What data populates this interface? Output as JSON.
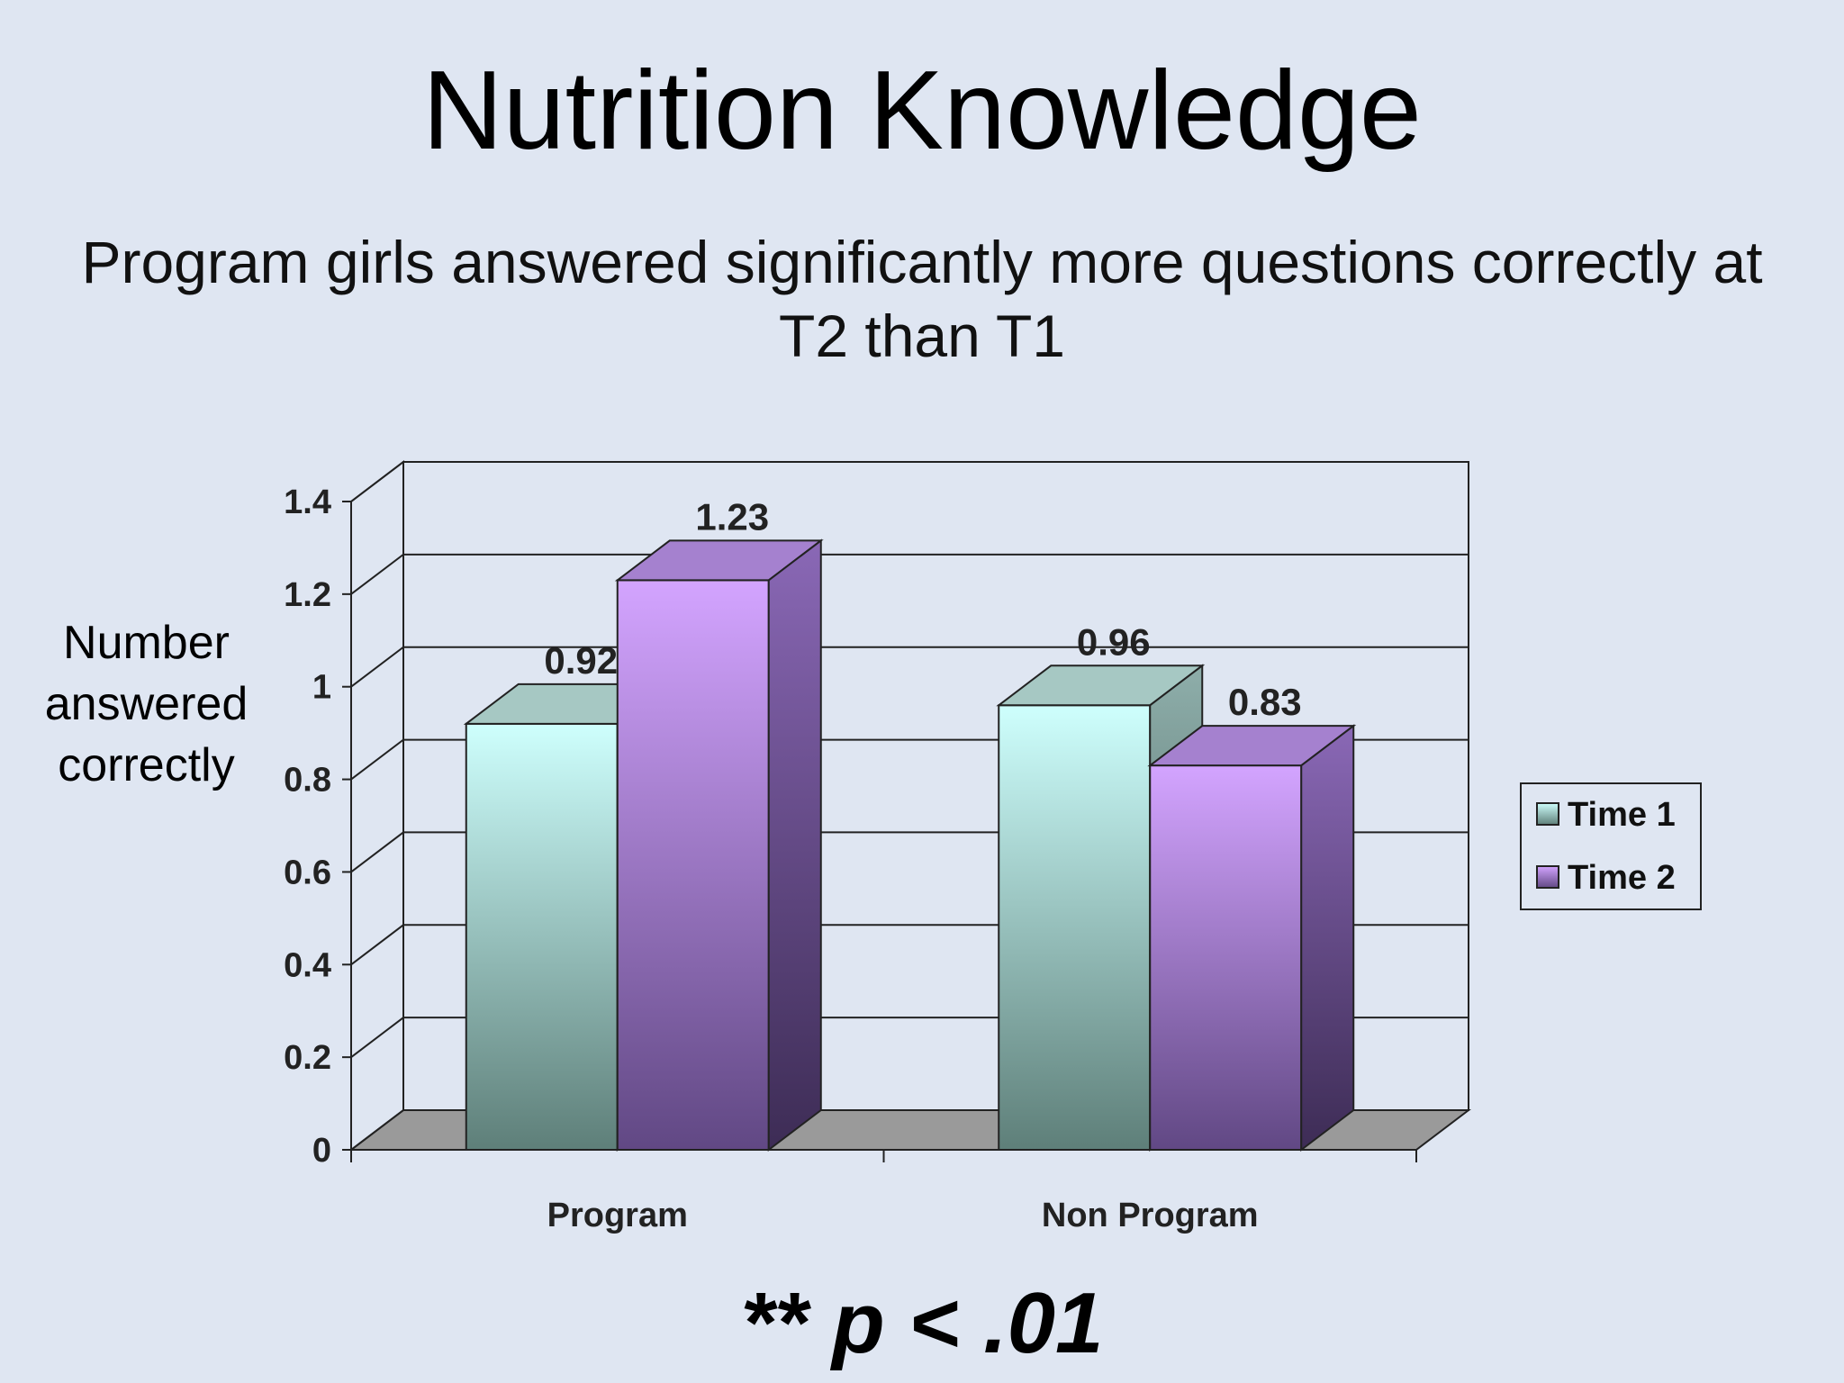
{
  "slide": {
    "title": "Nutrition Knowledge",
    "subtitle": "Program girls answered significantly more questions correctly at T2 than T1",
    "footnote": "** p < .01"
  },
  "chart_data": {
    "type": "bar",
    "style": "3d-clustered",
    "ylabel": "Number answered correctly",
    "xlabel": "",
    "categories": [
      "Program",
      "Non Program"
    ],
    "series": [
      {
        "name": "Time 1",
        "values": [
          0.92,
          0.96
        ],
        "labels": [
          "0.92",
          "0.96"
        ],
        "color": "#bff5f2"
      },
      {
        "name": "Time 2",
        "values": [
          1.23,
          0.83
        ],
        "labels": [
          "1.23",
          "0.83"
        ],
        "color": "#c69cf6"
      }
    ],
    "ylim": [
      0,
      1.4
    ],
    "yticks": [
      0,
      0.2,
      0.4,
      0.6,
      0.8,
      1,
      1.2,
      1.4
    ],
    "ytick_labels": [
      "0",
      "0.2",
      "0.4",
      "0.6",
      "0.8",
      "1",
      "1.2",
      "1.4"
    ],
    "grid": true,
    "legend": "right"
  }
}
